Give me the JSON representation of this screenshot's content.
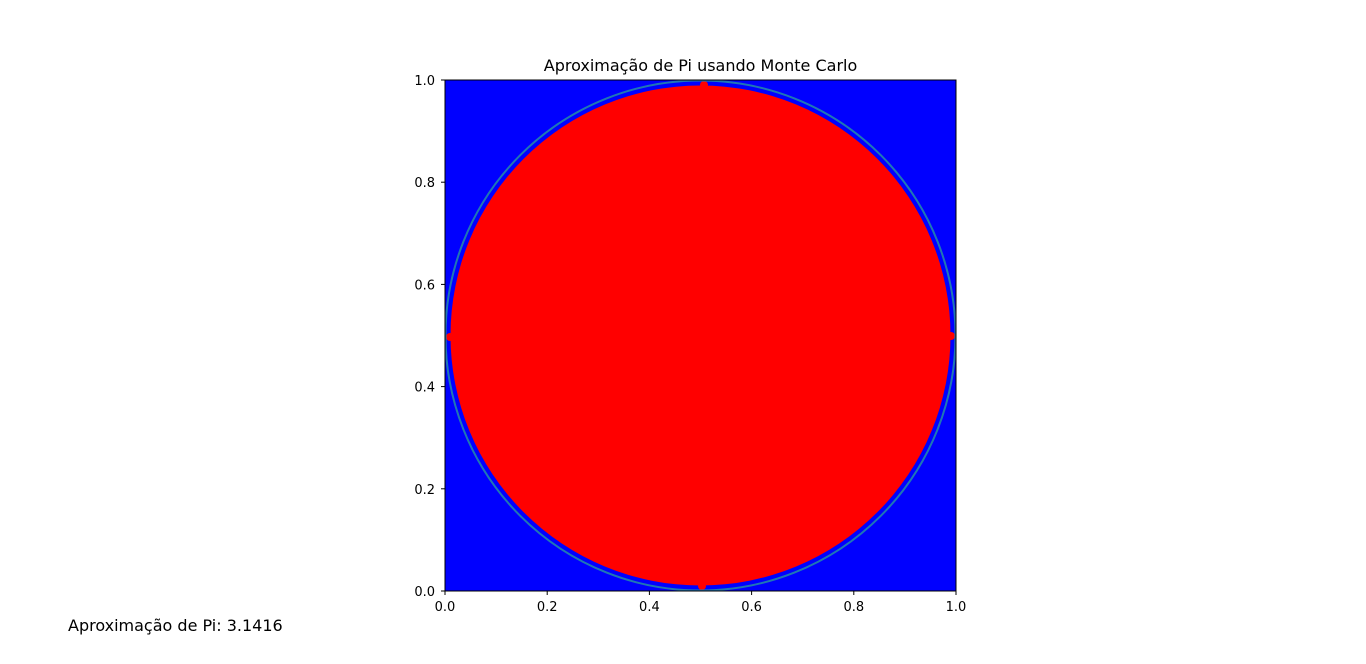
{
  "chart_data": {
    "type": "scatter",
    "title": "Aproximação de Pi usando Monte Carlo",
    "xlabel": "",
    "ylabel": "",
    "xlim": [
      0.0,
      1.0
    ],
    "ylim": [
      0.0,
      1.0
    ],
    "x_ticks": [
      "0.0",
      "0.2",
      "0.4",
      "0.6",
      "0.8",
      "1.0"
    ],
    "y_ticks": [
      "0.0",
      "0.2",
      "0.4",
      "0.6",
      "0.8",
      "1.0"
    ],
    "grid": false,
    "legend": "none",
    "regions": [
      {
        "label_color": "#ff0000",
        "region": "inside circle",
        "condition": "(x-0.5)^2 + (y-0.5)^2 <= 0.25"
      },
      {
        "label_color": "#0000ff",
        "region": "outside circle",
        "condition": "(x-0.5)^2 + (y-0.5)^2 > 0.25"
      }
    ],
    "circle": {
      "center": [
        0.5,
        0.5
      ],
      "radius": 0.5,
      "color": "#1f77b4"
    },
    "annotation": "Aproximação de Pi: 3.1416"
  }
}
